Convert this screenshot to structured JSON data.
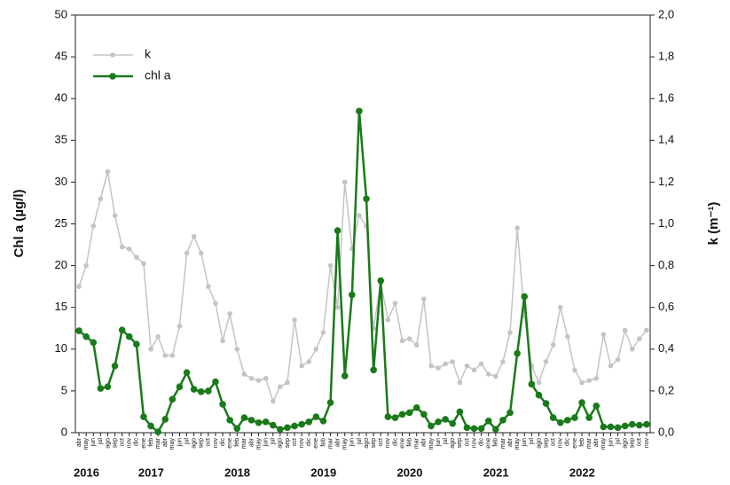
{
  "chart_data": {
    "type": "line",
    "categories": [
      "abr",
      "may",
      "jun",
      "jul",
      "ago",
      "sep",
      "oct",
      "nov",
      "dic",
      "ene",
      "feb",
      "mar",
      "abr",
      "may",
      "jun",
      "jul",
      "ago",
      "sep",
      "oct",
      "nov",
      "dic",
      "ene",
      "feb",
      "mar",
      "abr",
      "may",
      "jun",
      "jul",
      "ago",
      "sep",
      "oct",
      "nov",
      "dic",
      "ene",
      "feb",
      "mar",
      "abr",
      "may",
      "jun",
      "jul",
      "ago",
      "sep",
      "oct",
      "nov",
      "dic",
      "ene",
      "feb",
      "mar",
      "abr",
      "may",
      "jun",
      "jul",
      "ago",
      "sep",
      "oct",
      "nov",
      "dic",
      "ene",
      "feb",
      "mar",
      "abr",
      "may",
      "jun",
      "jul",
      "ago",
      "sep",
      "oct",
      "nov",
      "dic",
      "ene",
      "feb",
      "mar",
      "abr",
      "may",
      "jun",
      "jul",
      "ago",
      "sep",
      "oct",
      "nov"
    ],
    "years": [
      "2016",
      "2017",
      "2018",
      "2019",
      "2020",
      "2021",
      "2022"
    ],
    "y_label": "Chl a (µg/l)",
    "y2_label": "k (m⁻¹)",
    "ylim": [
      0,
      50
    ],
    "yticks": [
      0,
      5,
      10,
      15,
      20,
      25,
      30,
      35,
      40,
      45,
      50
    ],
    "y2lim": [
      0,
      2
    ],
    "y2ticks": [
      {
        "value": 0,
        "label": "0,0"
      },
      {
        "value": 0.2,
        "label": "0,2"
      },
      {
        "value": 0.4,
        "label": "0,4"
      },
      {
        "value": 0.6,
        "label": "0,6"
      },
      {
        "value": 0.8,
        "label": "0,8"
      },
      {
        "value": 1.0,
        "label": "1,0"
      },
      {
        "value": 1.2,
        "label": "1,2"
      },
      {
        "value": 1.4,
        "label": "1,4"
      },
      {
        "value": 1.6,
        "label": "1,6"
      },
      {
        "value": 1.8,
        "label": "1,8"
      },
      {
        "value": 2.0,
        "label": "2,0"
      }
    ],
    "legend": "upper-left",
    "series": [
      {
        "name": "k",
        "color": "#c4c4c4",
        "axis": "y2",
        "values": [
          0.7,
          0.8,
          0.99,
          1.12,
          1.25,
          1.04,
          0.89,
          0.88,
          0.84,
          0.81,
          0.4,
          0.46,
          0.37,
          0.37,
          0.51,
          0.86,
          0.94,
          0.86,
          0.7,
          0.62,
          0.44,
          0.57,
          0.4,
          0.28,
          0.26,
          0.25,
          0.26,
          0.15,
          0.22,
          0.24,
          0.54,
          0.32,
          0.34,
          0.4,
          0.48,
          0.8,
          0.6,
          1.2,
          0.88,
          1.04,
          0.99,
          0.5,
          0.72,
          0.54,
          0.62,
          0.44,
          0.45,
          0.42,
          0.64,
          0.32,
          0.31,
          0.33,
          0.34,
          0.24,
          0.32,
          0.3,
          0.33,
          0.28,
          0.27,
          0.34,
          0.48,
          0.98,
          0.56,
          0.32,
          0.24,
          0.34,
          0.42,
          0.6,
          0.46,
          0.3,
          0.24,
          0.25,
          0.26,
          0.47,
          0.32,
          0.35,
          0.49,
          0.4,
          0.45,
          0.49
        ]
      },
      {
        "name": "chl a",
        "color": "#1a7a1a",
        "axis": "y",
        "values": [
          12.2,
          11.5,
          10.8,
          5.3,
          5.5,
          8,
          12.3,
          11.5,
          10.6,
          1.9,
          0.8,
          0.1,
          1.6,
          4,
          5.5,
          7.2,
          5.2,
          4.9,
          5.0,
          6.1,
          3.4,
          1.5,
          0.5,
          1.8,
          1.5,
          1.2,
          1.3,
          0.9,
          0.4,
          0.6,
          0.8,
          1.0,
          1.3,
          1.9,
          1.4,
          3.6,
          24.2,
          6.8,
          16.5,
          38.5,
          28,
          7.5,
          18.2,
          1.9,
          1.8,
          2.2,
          2.4,
          3.0,
          2.2,
          0.8,
          1.3,
          1.6,
          1.1,
          2.5,
          0.6,
          0.5,
          0.5,
          1.4,
          0.4,
          1.5,
          2.4,
          9.5,
          16.3,
          5.8,
          4.5,
          3.5,
          1.8,
          1.2,
          1.5,
          1.8,
          3.6,
          1.8,
          3.2,
          0.7,
          0.7,
          0.6,
          0.8,
          1.0,
          0.9,
          1.0
        ]
      }
    ]
  }
}
